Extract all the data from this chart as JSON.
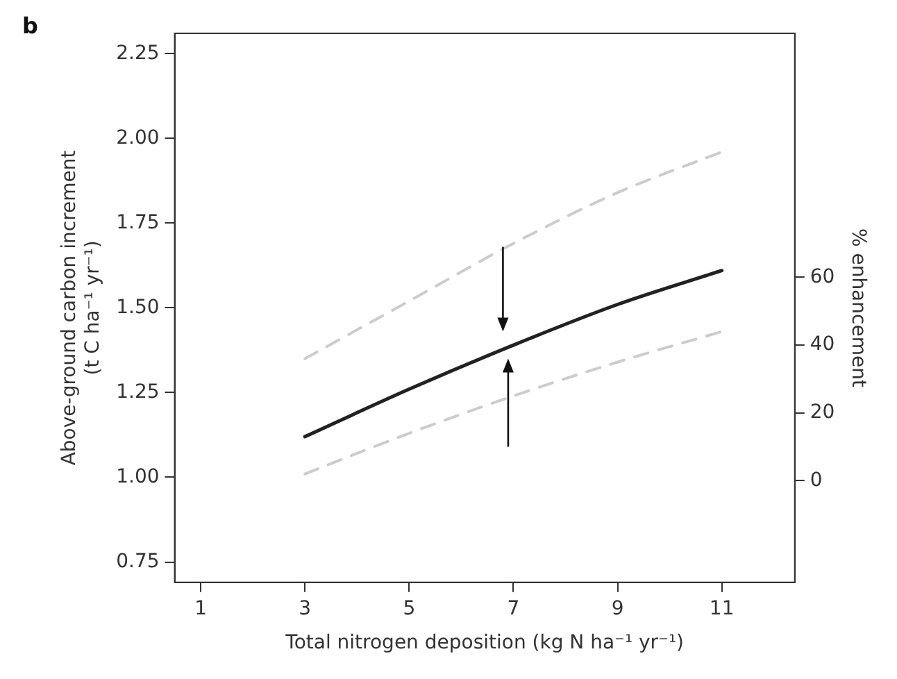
{
  "chart_data": {
    "type": "line",
    "annotations": [
      "b"
    ],
    "xlabel": "Total nitrogen deposition (kg N ha⁻¹ yr⁻¹)",
    "ylabel": "Above-ground carbon increment\n(t C ha⁻¹ yr⁻¹)",
    "y2label": "% enhancement",
    "x": [
      3,
      5,
      7,
      9,
      11
    ],
    "series": [
      {
        "color": "#222222",
        "line_style": "solid",
        "values": [
          1.12,
          1.26,
          1.39,
          1.51,
          1.61
        ]
      },
      {
        "color": "#cccccc",
        "line_style": "dashed",
        "values": [
          1.35,
          1.52,
          1.69,
          1.84,
          1.96
        ]
      },
      {
        "color": "#cccccc",
        "line_style": "dashed",
        "values": [
          1.01,
          1.13,
          1.24,
          1.34,
          1.43
        ]
      }
    ],
    "xlim": [
      0.5,
      12.4
    ],
    "xticks": [
      1,
      3,
      5,
      7,
      9,
      11
    ],
    "ylim": [
      0.69,
      2.31
    ],
    "yticks": [
      {
        "value": 0.75,
        "label": "0.75"
      },
      {
        "value": 1,
        "label": "1.00"
      },
      {
        "value": 1.25,
        "label": "1.25"
      },
      {
        "value": 1.5,
        "label": "1.50"
      },
      {
        "value": 1.75,
        "label": "1.75"
      },
      {
        "value": 2,
        "label": "2.00"
      },
      {
        "value": 2.25,
        "label": "2.25"
      }
    ],
    "y2lim": [
      -30,
      132
    ],
    "y2ticks": [
      0,
      20,
      40,
      60
    ],
    "grid": false,
    "legend": false,
    "marker": "none"
  }
}
